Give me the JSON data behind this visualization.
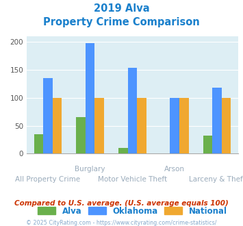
{
  "title_line1": "2019 Alva",
  "title_line2": "Property Crime Comparison",
  "categories": [
    "All Property Crime",
    "Burglary",
    "Motor Vehicle Theft",
    "Arson",
    "Larceny & Theft"
  ],
  "category_labels_top": [
    "",
    "Burglary",
    "",
    "Arson",
    ""
  ],
  "category_labels_bottom": [
    "All Property Crime",
    "",
    "Motor Vehicle Theft",
    "",
    "Larceny & Theft"
  ],
  "alva": [
    35,
    65,
    10,
    0,
    32
  ],
  "oklahoma": [
    135,
    197,
    153,
    100,
    118
  ],
  "national": [
    100,
    100,
    100,
    100,
    100
  ],
  "alva_color": "#6ab04c",
  "oklahoma_color": "#4d94ff",
  "national_color": "#f0a830",
  "bg_color": "#ddeef4",
  "title_color": "#1a80cc",
  "xlabel_color": "#9aabbb",
  "footer_color": "#88aacc",
  "note_color": "#cc3300",
  "footer_text": "© 2025 CityRating.com - https://www.cityrating.com/crime-statistics/",
  "note_text": "Compared to U.S. average. (U.S. average equals 100)",
  "ylim": [
    0,
    210
  ],
  "yticks": [
    0,
    50,
    100,
    150,
    200
  ],
  "bar_width": 0.22
}
